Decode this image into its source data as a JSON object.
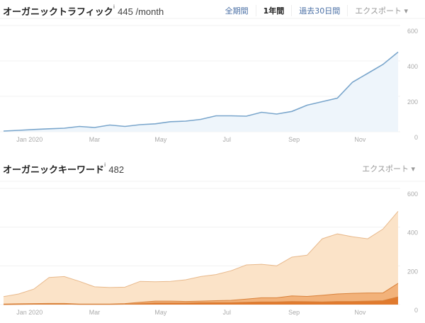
{
  "traffic": {
    "title": "オーガニックトラフィック",
    "info": "i",
    "value": "445 /month",
    "ranges": [
      "全期間",
      "1年間",
      "過去30日間"
    ],
    "active_range": "1年間",
    "export": "エクスポート ▾"
  },
  "keywords": {
    "title": "オーガニックキーワード",
    "info": "i",
    "value": "482",
    "export": "エクスポート ▾"
  },
  "chart_data": [
    {
      "type": "area",
      "ylim": [
        0,
        600
      ],
      "yticks": [
        "0",
        "200",
        "400",
        "600"
      ],
      "xticks": [
        "Jan 2020",
        "Mar",
        "May",
        "Jul",
        "Sep",
        "Nov"
      ],
      "grid": true,
      "color": "#7aa6cc",
      "x": [
        "2019-12-08",
        "2019-12-22",
        "2020-01-05",
        "2020-01-19",
        "2020-02-02",
        "2020-02-16",
        "2020-03-01",
        "2020-03-15",
        "2020-03-29",
        "2020-04-12",
        "2020-04-26",
        "2020-05-10",
        "2020-05-24",
        "2020-06-07",
        "2020-06-21",
        "2020-07-05",
        "2020-07-19",
        "2020-08-02",
        "2020-08-16",
        "2020-08-30",
        "2020-09-13",
        "2020-09-27",
        "2020-10-11",
        "2020-10-25",
        "2020-11-08",
        "2020-11-22",
        "2020-12-06"
      ],
      "series": [
        {
          "values": [
            4,
            8,
            13,
            17,
            20,
            30,
            24,
            38,
            30,
            40,
            45,
            57,
            60,
            70,
            90,
            90,
            88,
            110,
            100,
            115,
            150,
            170,
            190,
            280,
            330,
            380,
            450
          ]
        }
      ]
    },
    {
      "type": "area",
      "stacked": true,
      "ylim": [
        0,
        600
      ],
      "yticks": [
        "0",
        "200",
        "400",
        "600"
      ],
      "xticks": [
        "Jan 2020",
        "Mar",
        "May",
        "Jul",
        "Sep",
        "Nov"
      ],
      "grid": true,
      "x": [
        "2019-12-08",
        "2019-12-22",
        "2020-01-05",
        "2020-01-19",
        "2020-02-02",
        "2020-02-16",
        "2020-03-01",
        "2020-03-15",
        "2020-03-29",
        "2020-04-12",
        "2020-04-26",
        "2020-05-10",
        "2020-05-24",
        "2020-06-07",
        "2020-06-21",
        "2020-07-05",
        "2020-07-19",
        "2020-08-02",
        "2020-08-16",
        "2020-08-30",
        "2020-09-13",
        "2020-09-27",
        "2020-10-11",
        "2020-10-25",
        "2020-11-08",
        "2020-11-22",
        "2020-12-06"
      ],
      "series": [
        {
          "color": "#fbe3c8",
          "values": [
            41,
            55,
            80,
            140,
            145,
            120,
            92,
            88,
            90,
            120,
            118,
            120,
            128,
            145,
            155,
            175,
            205,
            208,
            200,
            245,
            255,
            340,
            365,
            350,
            340,
            390,
            482
          ]
        },
        {
          "color": "#f2b27a",
          "values": [
            3,
            4,
            5,
            6,
            6,
            3,
            3,
            3,
            5,
            12,
            18,
            18,
            16,
            18,
            20,
            22,
            28,
            35,
            35,
            45,
            42,
            48,
            55,
            58,
            60,
            60,
            110
          ]
        },
        {
          "color": "#e07a2e",
          "values": [
            0,
            1,
            2,
            3,
            3,
            1,
            1,
            1,
            2,
            5,
            8,
            8,
            8,
            10,
            10,
            10,
            12,
            14,
            14,
            16,
            15,
            14,
            16,
            16,
            18,
            20,
            40
          ]
        }
      ]
    }
  ]
}
